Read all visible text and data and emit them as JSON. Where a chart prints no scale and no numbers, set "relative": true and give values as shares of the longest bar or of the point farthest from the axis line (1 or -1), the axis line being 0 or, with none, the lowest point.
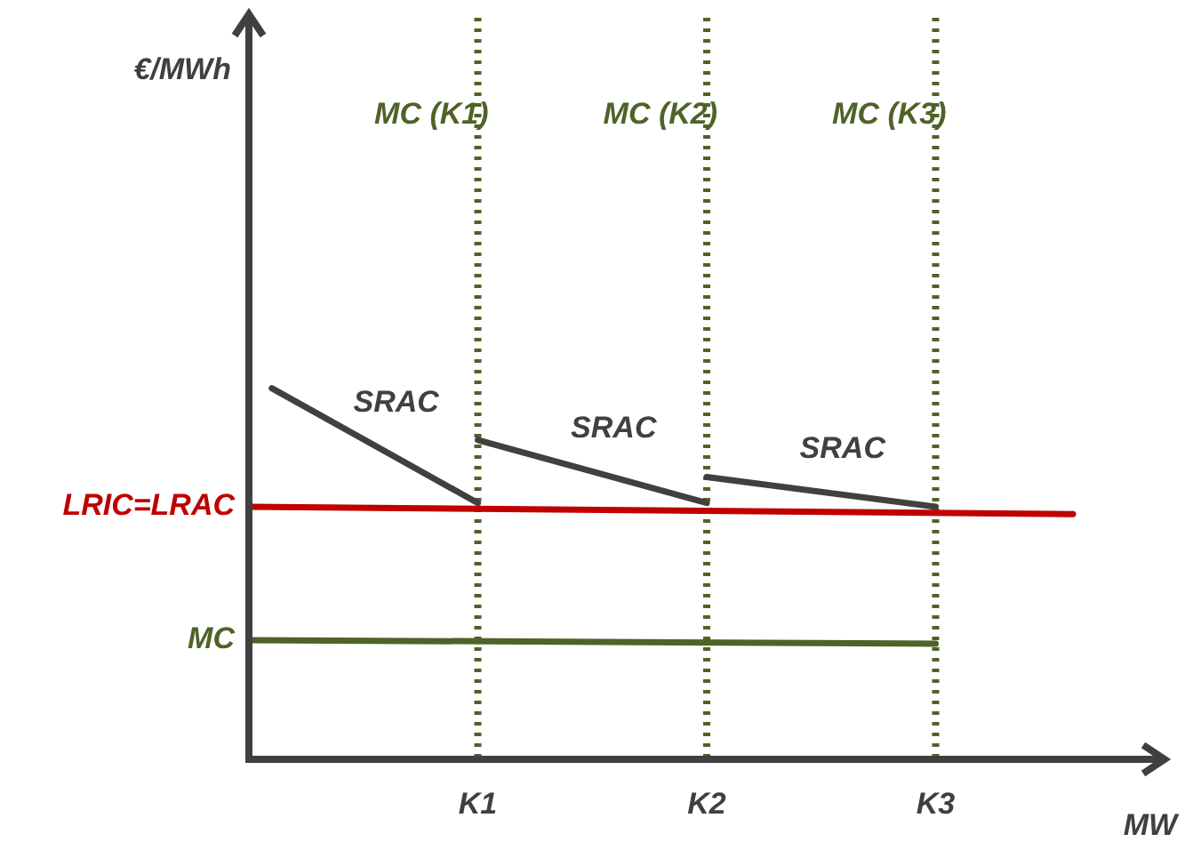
{
  "chart_data": {
    "type": "line",
    "relative": true,
    "xlabel": "MW",
    "annotations": [
      "€/MWh"
    ],
    "grid": false,
    "legend": false,
    "marker": "none",
    "line_style": "solid",
    "categories": [
      null,
      null,
      null,
      null,
      null,
      null,
      null,
      null,
      null,
      null,
      "K1",
      null,
      null,
      null,
      null,
      null,
      null,
      null,
      null,
      null,
      "K2",
      null,
      null,
      null,
      null,
      null,
      null,
      null,
      null,
      null,
      "K3",
      null,
      null,
      null,
      null,
      null,
      null,
      null,
      null,
      null,
      null
    ],
    "series": [
      {
        "name": "LRIC=LRAC",
        "color": "#c00000",
        "values": [
          0.68,
          null,
          null,
          null,
          null,
          null,
          null,
          null,
          null,
          null,
          null,
          null,
          null,
          null,
          null,
          null,
          null,
          null,
          null,
          null,
          null,
          null,
          null,
          null,
          null,
          null,
          null,
          null,
          null,
          null,
          null,
          null,
          null,
          null,
          null,
          null,
          0.66,
          null,
          null,
          null,
          null
        ]
      },
      {
        "name": "MC",
        "color": "#4f6228",
        "values": [
          0.32,
          null,
          null,
          null,
          null,
          null,
          null,
          null,
          null,
          null,
          null,
          null,
          null,
          null,
          null,
          null,
          null,
          null,
          null,
          null,
          null,
          null,
          null,
          null,
          null,
          null,
          null,
          null,
          null,
          null,
          0.31,
          null,
          null,
          null,
          null,
          null,
          null,
          null,
          null,
          null,
          null
        ]
      },
      {
        "name": "SRAC",
        "color": "#404040",
        "values": [
          null,
          1,
          null,
          null,
          null,
          null,
          null,
          null,
          null,
          null,
          0.69,
          null,
          null,
          null,
          null,
          null,
          null,
          null,
          null,
          null,
          null,
          null,
          null,
          null,
          null,
          null,
          null,
          null,
          null,
          null,
          null,
          null,
          null,
          null,
          null,
          null,
          null,
          null,
          null,
          null,
          null
        ]
      },
      {
        "name": "SRAC",
        "color": "#404040",
        "values": [
          null,
          null,
          null,
          null,
          null,
          null,
          null,
          null,
          null,
          null,
          0.86,
          null,
          null,
          null,
          null,
          null,
          null,
          null,
          null,
          null,
          0.69,
          null,
          null,
          null,
          null,
          null,
          null,
          null,
          null,
          null,
          null,
          null,
          null,
          null,
          null,
          null,
          null,
          null,
          null,
          null,
          null
        ]
      },
      {
        "name": "SRAC",
        "color": "#404040",
        "values": [
          null,
          null,
          null,
          null,
          null,
          null,
          null,
          null,
          null,
          null,
          null,
          null,
          null,
          null,
          null,
          null,
          null,
          null,
          null,
          null,
          0.76,
          null,
          null,
          null,
          null,
          null,
          null,
          null,
          null,
          null,
          0.68,
          null,
          null,
          null,
          null,
          null,
          null,
          null,
          null,
          null,
          null
        ]
      }
    ],
    "ref_lines": [
      {
        "axis": "x",
        "value": "K1",
        "label": "MC (K1)",
        "color": "#4f6228",
        "line_style": "dotted"
      },
      {
        "axis": "x",
        "value": "K2",
        "label": "MC (K2)",
        "color": "#4f6228",
        "line_style": "dotted"
      },
      {
        "axis": "x",
        "value": "K3",
        "label": "MC (K3)",
        "color": "#4f6228",
        "line_style": "dotted"
      }
    ]
  }
}
